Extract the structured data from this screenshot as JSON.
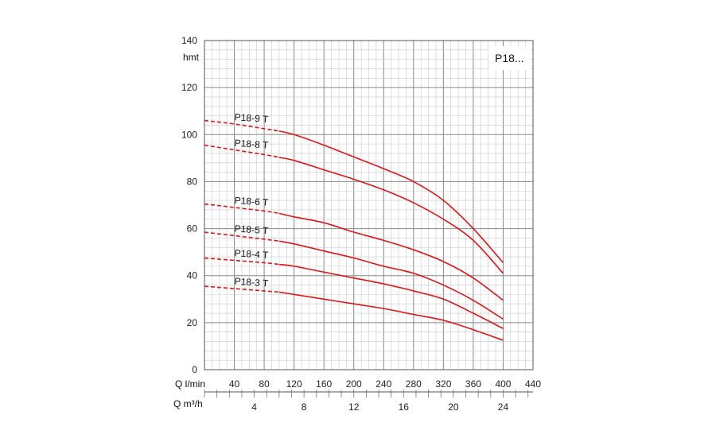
{
  "chart_data": {
    "type": "line",
    "title": "P18...",
    "xlabel": "Q l/min",
    "xlabel2": "Q m³/h",
    "ylabel": "hmt",
    "xlim": [
      0,
      440
    ],
    "ylim": [
      0,
      140
    ],
    "grid": true,
    "x_ticks": [
      40,
      80,
      120,
      160,
      200,
      240,
      280,
      320,
      360,
      400,
      440
    ],
    "x_ticks2": [
      4,
      8,
      12,
      16,
      20,
      24
    ],
    "y_ticks": [
      0,
      20,
      40,
      60,
      80,
      100,
      120,
      140
    ],
    "colors": {
      "curve": "#e01414",
      "grid_major": "#888888",
      "grid_minor": "#c8c8c8"
    },
    "dashed_until": 100,
    "series": [
      {
        "name": "P18-9 T",
        "x": [
          0,
          40,
          80,
          100,
          120,
          160,
          200,
          240,
          280,
          320,
          360,
          400
        ],
        "y": [
          106,
          104.5,
          102.5,
          101.5,
          100,
          95.5,
          90.5,
          85.5,
          80,
          72,
          60,
          45.5
        ]
      },
      {
        "name": "P18-8 T",
        "x": [
          0,
          40,
          80,
          100,
          120,
          160,
          200,
          240,
          280,
          320,
          360,
          400
        ],
        "y": [
          95.5,
          93.5,
          91.5,
          90.3,
          89,
          85,
          81,
          76.5,
          71,
          64,
          55,
          41
        ]
      },
      {
        "name": "P18-6 T",
        "x": [
          0,
          40,
          80,
          100,
          120,
          160,
          200,
          240,
          280,
          320,
          360,
          400
        ],
        "y": [
          70.5,
          69,
          67.5,
          66.5,
          65,
          62.5,
          58.5,
          55,
          51,
          46,
          39,
          29.5
        ]
      },
      {
        "name": "P18-5 T",
        "x": [
          0,
          40,
          80,
          100,
          120,
          160,
          200,
          240,
          280,
          320,
          360,
          400
        ],
        "y": [
          58.5,
          57,
          55.5,
          54.7,
          53.5,
          50.5,
          47.5,
          44,
          41,
          36,
          29.5,
          21.5
        ]
      },
      {
        "name": "P18-4 T",
        "x": [
          0,
          40,
          80,
          100,
          120,
          160,
          200,
          240,
          280,
          320,
          360,
          400
        ],
        "y": [
          47.5,
          46.5,
          45.5,
          44.8,
          44,
          41.5,
          39,
          36.5,
          33.5,
          30,
          24,
          17.5
        ]
      },
      {
        "name": "P18-3 T",
        "x": [
          0,
          40,
          80,
          100,
          120,
          160,
          200,
          240,
          280,
          320,
          360,
          400
        ],
        "y": [
          35.5,
          34.5,
          33.5,
          33,
          32,
          30,
          28,
          26,
          23.5,
          21,
          17,
          12.5
        ]
      }
    ]
  }
}
